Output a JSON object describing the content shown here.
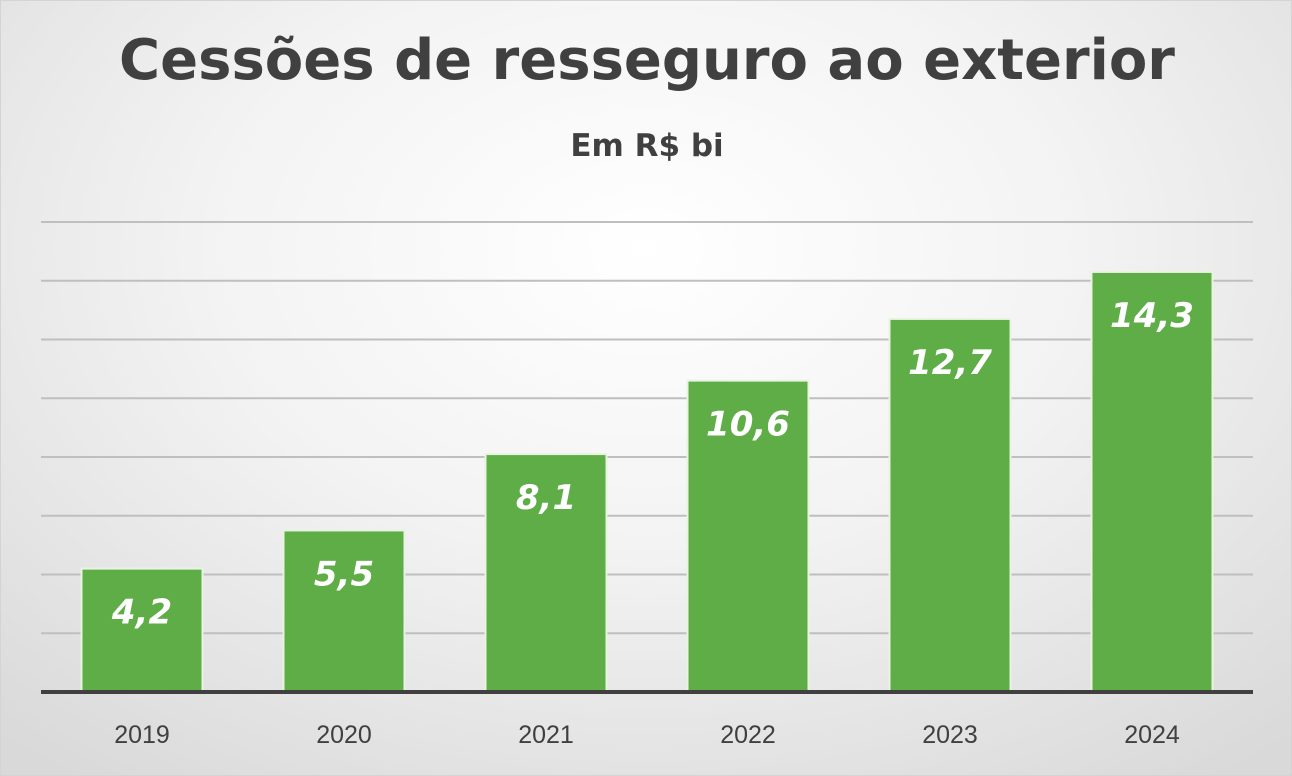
{
  "chart_data": {
    "type": "bar",
    "title": "Cessões de resseguro ao exterior",
    "subtitle": "Em R$ bi",
    "categories": [
      "2019",
      "2020",
      "2021",
      "2022",
      "2023",
      "2024"
    ],
    "values": [
      4.2,
      5.5,
      8.1,
      10.6,
      12.7,
      14.3
    ],
    "data_labels": [
      "4,2",
      "5,5",
      "8,1",
      "10,6",
      "12,7",
      "14,3"
    ],
    "xlabel": "",
    "ylabel": "",
    "ylim": [
      0,
      16
    ],
    "y_gridline_step": 2,
    "grid": true,
    "legend": "none",
    "colors": {
      "bar": "#5fad46",
      "bar_edge": "#e8f3e2",
      "label": "#ffffff",
      "text": "#404040",
      "grid": "#bfbfbf"
    }
  }
}
